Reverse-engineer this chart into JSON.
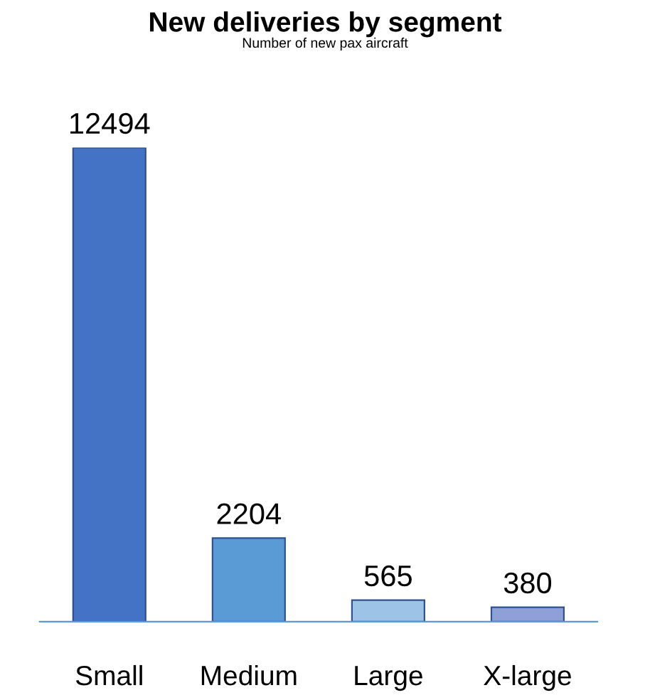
{
  "chart_data": {
    "type": "bar",
    "title": "New deliveries by segment",
    "subtitle": "Number of new pax aircraft",
    "categories": [
      "Small",
      "Medium",
      "Large",
      "X-large"
    ],
    "values": [
      12494,
      2204,
      565,
      380
    ],
    "colors": [
      "#4472c4",
      "#5b9bd5",
      "#9dc3e6",
      "#8fa0d8"
    ],
    "data_labels": true
  }
}
